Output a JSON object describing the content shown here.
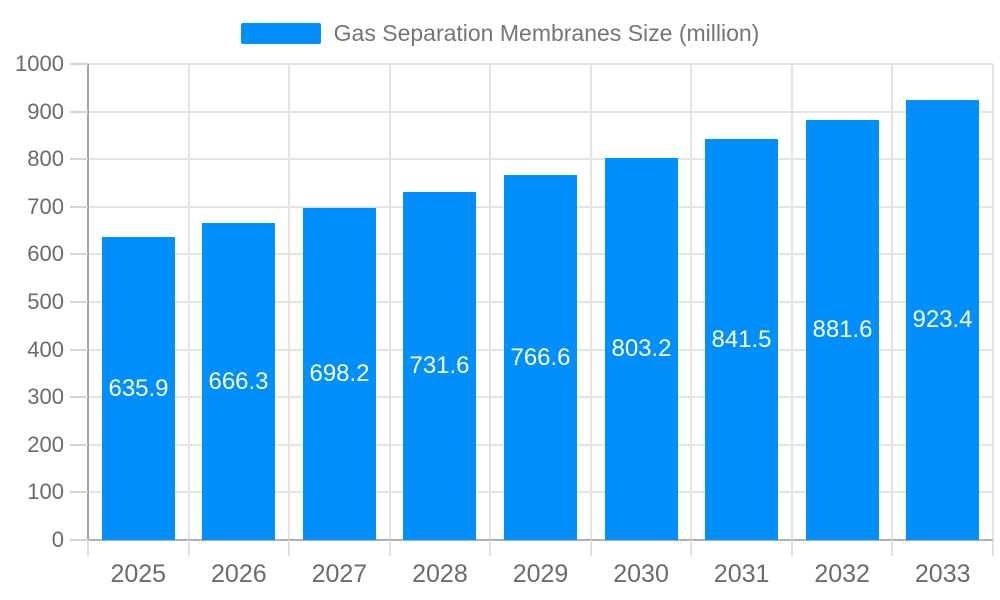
{
  "chart_data": {
    "type": "bar",
    "title": "Gas Separation Membranes Size (million)",
    "legend": {
      "label": "Gas Separation Membranes Size (million)",
      "position": "top"
    },
    "categories": [
      "2025",
      "2026",
      "2027",
      "2028",
      "2029",
      "2030",
      "2031",
      "2032",
      "2033"
    ],
    "values": [
      635.9,
      666.3,
      698.2,
      731.6,
      766.6,
      803.2,
      841.5,
      881.6,
      923.4
    ],
    "value_labels": [
      "635.9",
      "666.3",
      "698.2",
      "731.6",
      "766.6",
      "803.2",
      "841.5",
      "881.6",
      "923.4"
    ],
    "xlabel": "",
    "ylabel": "",
    "ylim": [
      0,
      1000
    ],
    "ytick_step": 100,
    "yticks": [
      0,
      100,
      200,
      300,
      400,
      500,
      600,
      700,
      800,
      900,
      1000
    ],
    "grid": "both",
    "colors": {
      "bar": "#008ffb",
      "grid": "#e4e4e4",
      "y_axis_line": "#a3a3a3",
      "x_axis_line": "#b0b0b0",
      "y_tick": "#d4d4d4",
      "x_tick": "#e0e0e0",
      "axis_label_text": "#6b6b6b",
      "legend_text": "#757575",
      "bar_value_text": "#ffffff",
      "background": "#ffffff"
    }
  }
}
